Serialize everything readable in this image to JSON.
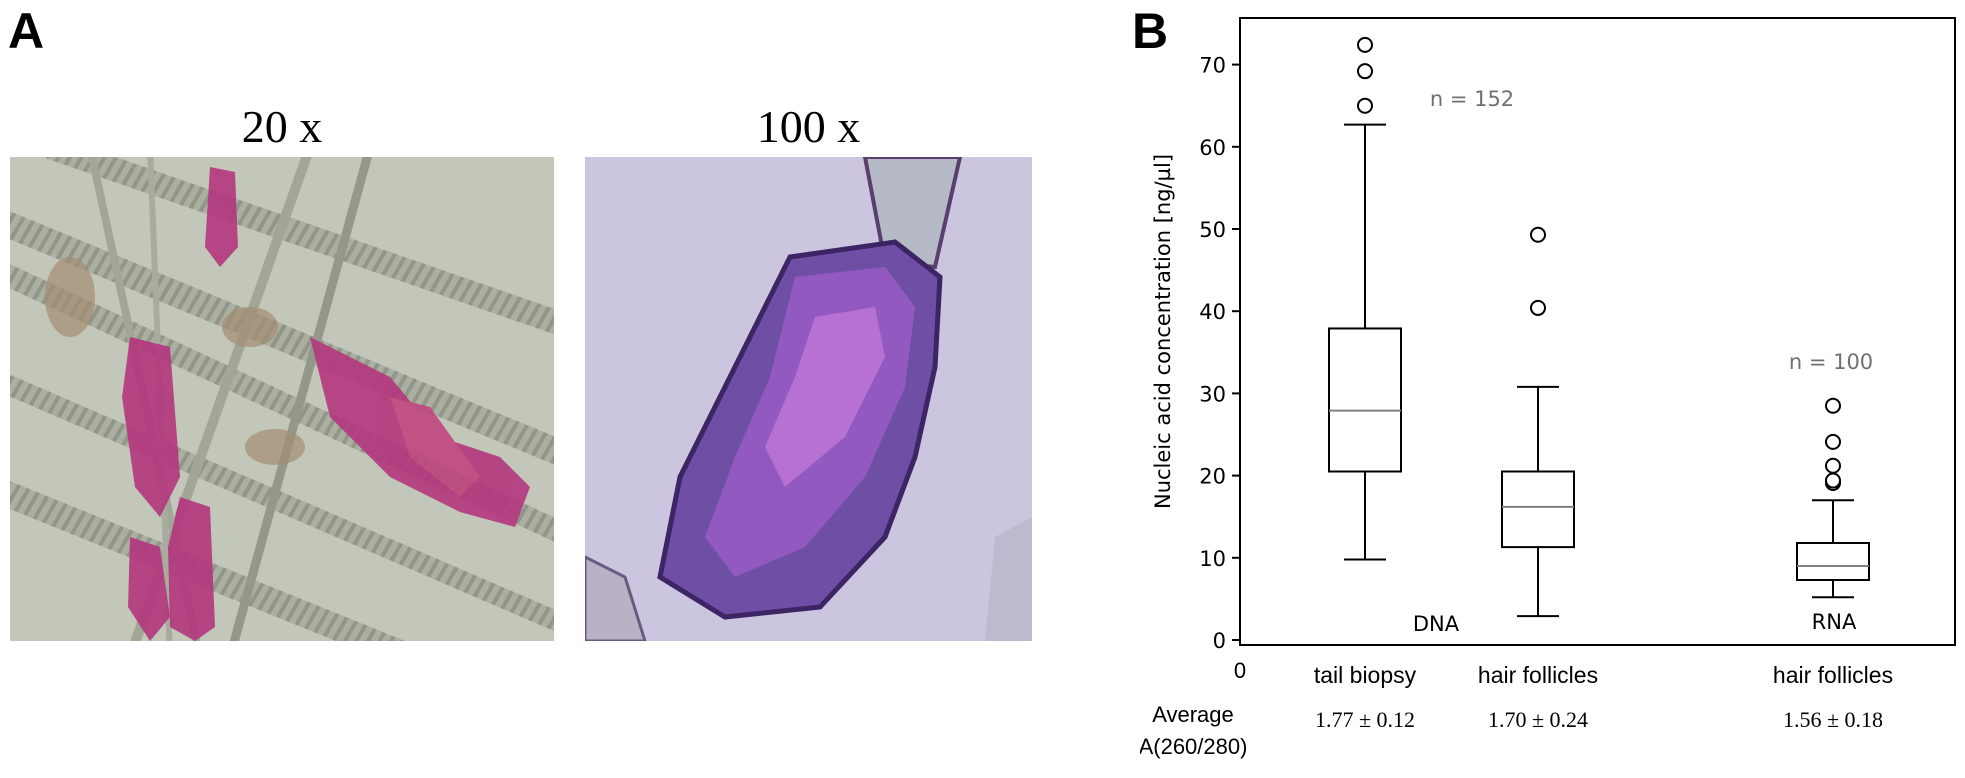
{
  "panel_a": {
    "letter": "A",
    "images": [
      {
        "label": "20 x",
        "content": "light-microscope image of hair follicles (pink stained bulbs among hair shafts)"
      },
      {
        "label": "100 x",
        "content": "light-microscope image of a single hair follicle bulb (purple stained)"
      }
    ]
  },
  "panel_b": {
    "letter": "B"
  },
  "chart_data": {
    "type": "box",
    "ylabel": "Nucleic acid concentration [ng/µl]",
    "ylim": [
      0,
      75
    ],
    "yticks": [
      0,
      10,
      20,
      30,
      40,
      50,
      60,
      70
    ],
    "x_origin_label": "0",
    "grid": false,
    "group_labels": [
      "DNA",
      "RNA"
    ],
    "n_labels": [
      "n = 152",
      "n = 100"
    ],
    "boxes": [
      {
        "category": "tail biopsy",
        "group": "DNA",
        "whisker_low": 9.8,
        "q1": 20.5,
        "median": 27.9,
        "q3": 37.9,
        "whisker_high": 62.7,
        "outliers": [
          65.0,
          69.2,
          72.4
        ],
        "a260_280": "1.77 ± 0.12"
      },
      {
        "category": "hair follicles",
        "group": "DNA",
        "whisker_low": 2.9,
        "q1": 11.3,
        "median": 16.2,
        "q3": 20.5,
        "whisker_high": 30.8,
        "outliers": [
          40.4,
          49.3
        ],
        "a260_280": "1.70 ± 0.24"
      },
      {
        "category": "hair follicles",
        "group": "RNA",
        "whisker_low": 5.2,
        "q1": 7.3,
        "median": 9.0,
        "q3": 11.8,
        "whisker_high": 17.0,
        "outliers": [
          19.1,
          19.4,
          21.2,
          24.1,
          28.5
        ],
        "a260_280": "1.56 ± 0.18"
      }
    ],
    "stat_row_label": "Average\nA(260/280)",
    "colors": {
      "box": "#000000",
      "median": "#808080",
      "n_label": "#707070"
    }
  }
}
